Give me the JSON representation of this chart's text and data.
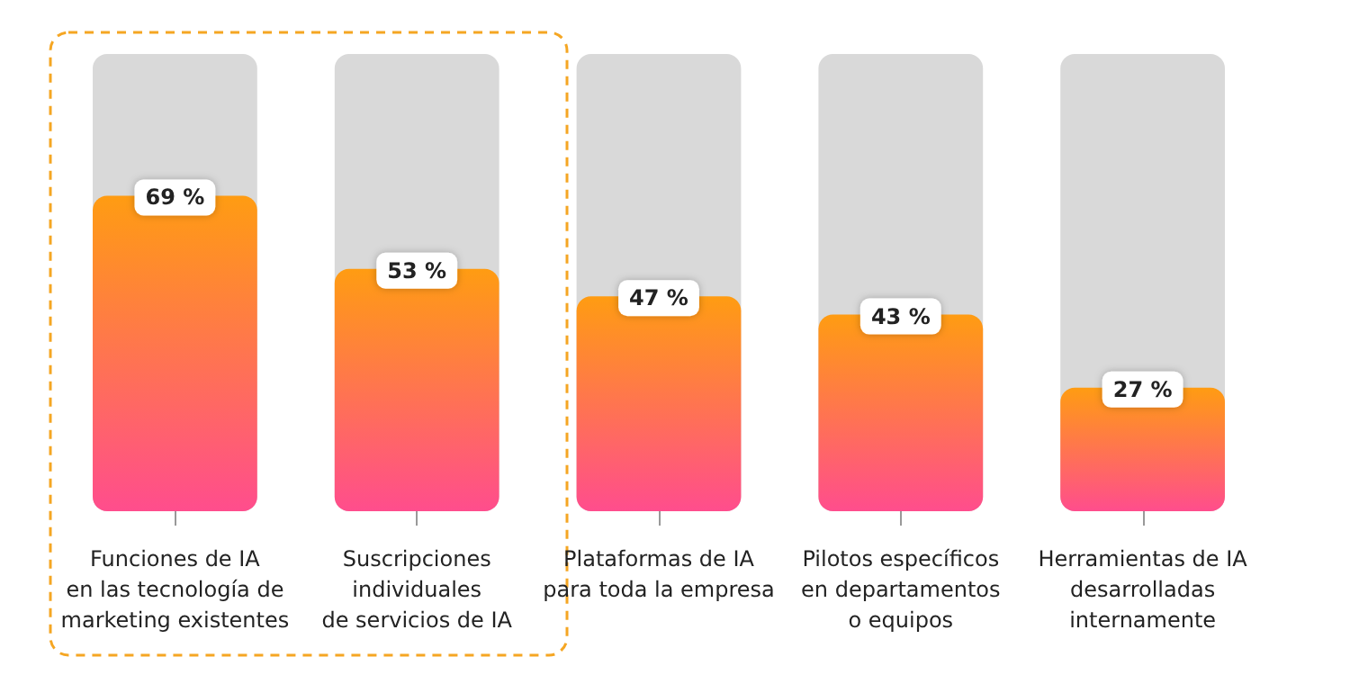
{
  "chart_data": {
    "type": "bar",
    "categories": [
      "Funciones de IA\nen las tecnología de\nmarketing existentes",
      "Suscripciones\nindividuales\nde servicios de IA",
      "Plataformas de IA\npara toda la empresa",
      "Pilotos específicos\nen departamentos\no equipos",
      "Herramientas de IA\ndesarrolladas\ninternamente"
    ],
    "values": [
      69,
      53,
      47,
      43,
      27
    ],
    "value_labels": [
      "69 %",
      "53 %",
      "47 %",
      "43 %",
      "27 %"
    ],
    "color": "#ff9c12",
    "ylim": [
      0,
      100
    ],
    "tick_labels": "x"
  }
}
